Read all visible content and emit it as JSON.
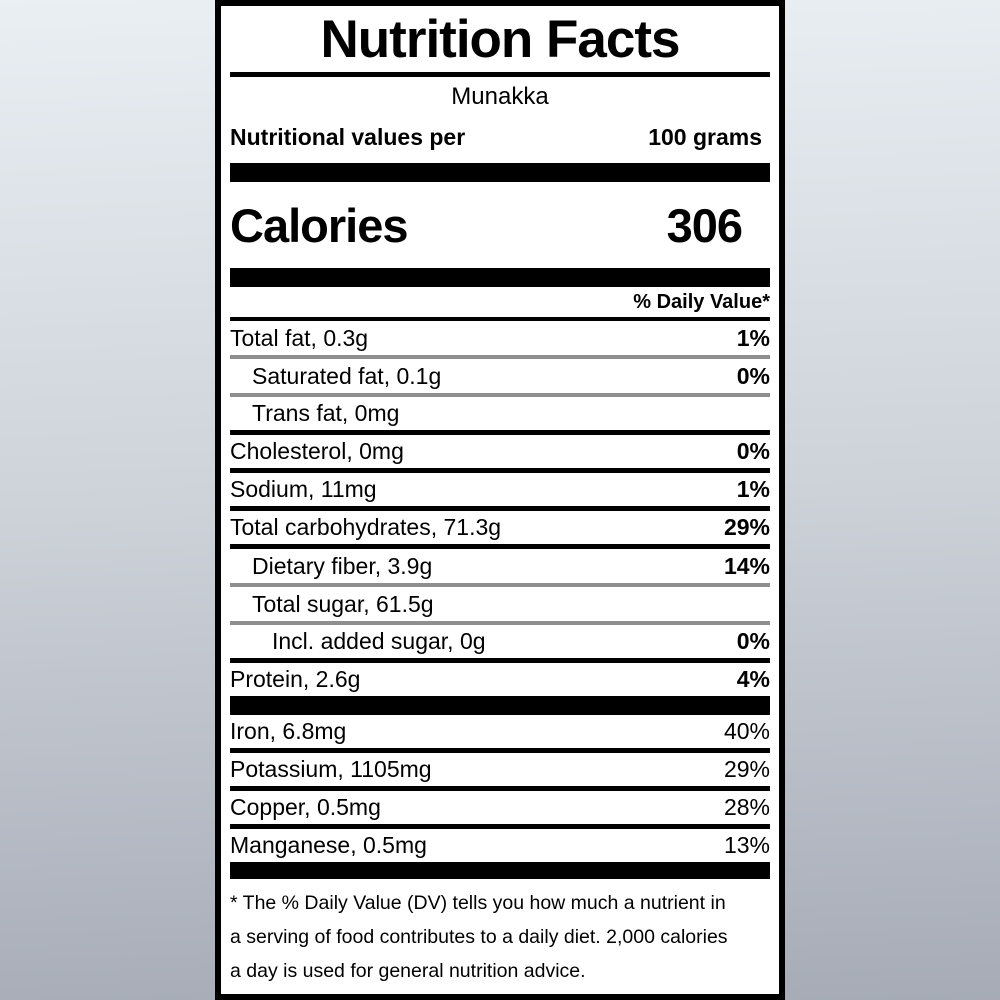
{
  "colors": {
    "background_top": "#e9eff3",
    "background_bottom": "#a6abb6",
    "label_background": "#ffffff",
    "text": "#000000",
    "separator_gray": "#8f8f8f"
  },
  "label": {
    "title": "Nutrition Facts",
    "product_name": "Munakka",
    "serving_label": "Nutritional values per",
    "serving_size": "100 grams",
    "calories_label": "Calories",
    "calories_value": "306",
    "daily_value_header": "% Daily Value*",
    "nutrients": [
      {
        "text": "Total fat, 0.3g",
        "pct": "1%"
      },
      {
        "text": "Saturated fat, 0.1g",
        "pct": "0%"
      },
      {
        "text": "Trans fat, 0mg",
        "pct": ""
      },
      {
        "text": "Cholesterol, 0mg",
        "pct": "0%"
      },
      {
        "text": "Sodium, 11mg",
        "pct": "1%"
      },
      {
        "text": "Total carbohydrates, 71.3g",
        "pct": "29%"
      },
      {
        "text": "Dietary fiber, 3.9g",
        "pct": "14%"
      },
      {
        "text": "Total sugar, 61.5g",
        "pct": ""
      },
      {
        "text": "Incl. added sugar, 0g",
        "pct": "0%"
      },
      {
        "text": "Protein, 2.6g",
        "pct": "4%"
      }
    ],
    "minerals": [
      {
        "text": "Iron, 6.8mg",
        "pct": "40%"
      },
      {
        "text": "Potassium, 1105mg",
        "pct": "29%"
      },
      {
        "text": "Copper, 0.5mg",
        "pct": "28%"
      },
      {
        "text": "Manganese, 0.5mg",
        "pct": "13%"
      }
    ],
    "footnote_lines": [
      "* The % Daily Value (DV) tells you how much a nutrient in",
      "a serving of food contributes to a daily diet. 2,000 calories",
      "a day is used for general nutrition advice."
    ]
  }
}
